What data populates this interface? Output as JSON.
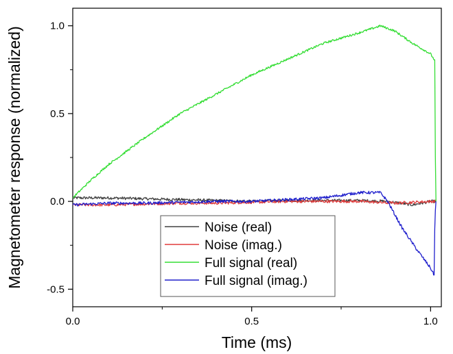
{
  "chart_data": {
    "type": "line",
    "title": "",
    "xlabel": "Time (ms)",
    "ylabel": "Magnetometer response (normalized)",
    "xlim": [
      0.0,
      1.03
    ],
    "ylim": [
      -0.6,
      1.1
    ],
    "xticks": [
      0.0,
      0.5,
      1.0
    ],
    "xtick_labels": [
      "0.0",
      "0.5",
      "1.0"
    ],
    "yticks": [
      -0.5,
      0.0,
      0.5,
      1.0
    ],
    "ytick_labels": [
      "-0.5",
      "0.0",
      "0.5",
      "1.0"
    ],
    "grid": false,
    "legend_position": "bottom-center",
    "series": [
      {
        "name": "Noise (real)",
        "color": "#404040",
        "x": [
          0.0,
          0.1,
          0.2,
          0.3,
          0.4,
          0.5,
          0.6,
          0.7,
          0.8,
          0.88,
          0.95,
          1.0,
          1.015
        ],
        "y": [
          0.02,
          0.02,
          0.015,
          0.01,
          0.005,
          0.0,
          0.005,
          0.005,
          0.005,
          0.0,
          -0.02,
          0.0,
          0.0
        ],
        "noise": 0.008
      },
      {
        "name": "Noise (imag.)",
        "color": "#e03c3c",
        "x": [
          0.0,
          0.1,
          0.2,
          0.3,
          0.4,
          0.5,
          0.6,
          0.7,
          0.8,
          0.9,
          1.0,
          1.015
        ],
        "y": [
          -0.02,
          -0.02,
          -0.015,
          -0.01,
          -0.01,
          -0.005,
          0.0,
          0.0,
          0.0,
          -0.01,
          0.0,
          0.0
        ],
        "noise": 0.008
      },
      {
        "name": "Full signal (real)",
        "color": "#33dd33",
        "x": [
          0.0,
          0.05,
          0.1,
          0.2,
          0.3,
          0.4,
          0.5,
          0.6,
          0.7,
          0.8,
          0.86,
          0.9,
          0.95,
          1.0,
          1.012,
          1.013,
          1.015
        ],
        "y": [
          0.02,
          0.12,
          0.21,
          0.36,
          0.5,
          0.61,
          0.72,
          0.81,
          0.9,
          0.96,
          1.0,
          0.97,
          0.9,
          0.84,
          0.8,
          0.3,
          0.0
        ],
        "noise": 0.006
      },
      {
        "name": "Full signal (imag.)",
        "color": "#1f1fcc",
        "x": [
          0.0,
          0.1,
          0.2,
          0.3,
          0.4,
          0.5,
          0.6,
          0.7,
          0.8,
          0.86,
          0.88,
          0.92,
          0.96,
          1.0,
          1.01,
          1.012,
          1.015
        ],
        "y": [
          -0.02,
          -0.01,
          -0.01,
          -0.005,
          0.0,
          0.0,
          0.01,
          0.02,
          0.05,
          0.05,
          0.0,
          -0.15,
          -0.27,
          -0.38,
          -0.42,
          -0.1,
          0.0
        ],
        "noise": 0.008
      }
    ]
  }
}
